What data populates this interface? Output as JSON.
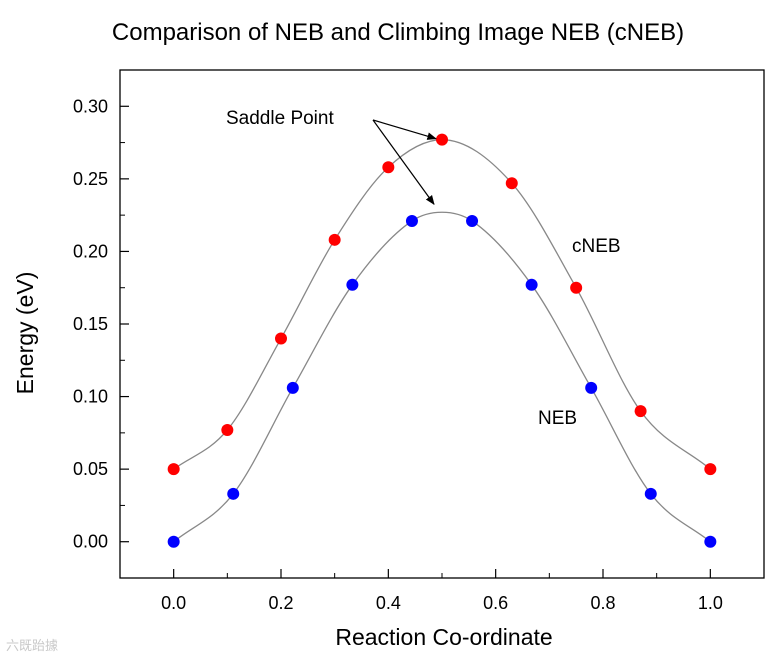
{
  "chart_data": {
    "type": "scatter",
    "title": "Comparison of NEB and Climbing Image NEB (cNEB)",
    "xlabel": "Reaction Co-ordinate",
    "ylabel": "Energy  (eV)",
    "xlim": [
      -0.1,
      1.1
    ],
    "ylim": [
      -0.025,
      0.325
    ],
    "xticks": [
      0.0,
      0.2,
      0.4,
      0.6,
      0.8,
      1.0
    ],
    "xtick_labels": [
      "0.0",
      "0.2",
      "0.4",
      "0.6",
      "0.8",
      "1.0"
    ],
    "yticks": [
      0.0,
      0.05,
      0.1,
      0.15,
      0.2,
      0.25,
      0.3
    ],
    "ytick_labels": [
      "0.00",
      "0.05",
      "0.10",
      "0.15",
      "0.20",
      "0.25",
      "0.30"
    ],
    "grid": false,
    "series": [
      {
        "name": "cNEB",
        "color": "#ff0000",
        "x": [
          0.0,
          0.1,
          0.2,
          0.3,
          0.4,
          0.5,
          0.63,
          0.75,
          0.87,
          1.0
        ],
        "y": [
          0.05,
          0.077,
          0.14,
          0.208,
          0.258,
          0.277,
          0.247,
          0.175,
          0.09,
          0.05
        ]
      },
      {
        "name": "NEB",
        "color": "#0000ff",
        "x": [
          0.0,
          0.111,
          0.222,
          0.333,
          0.444,
          0.556,
          0.667,
          0.778,
          0.889,
          1.0
        ],
        "y": [
          0.0,
          0.033,
          0.106,
          0.177,
          0.221,
          0.221,
          0.177,
          0.106,
          0.033,
          0.0
        ]
      }
    ],
    "annotations": [
      {
        "text": "Saddle Point",
        "targets": [
          [
            0.5,
            0.277
          ],
          [
            0.5,
            0.227
          ]
        ]
      }
    ],
    "watermark": "六既跆據"
  }
}
